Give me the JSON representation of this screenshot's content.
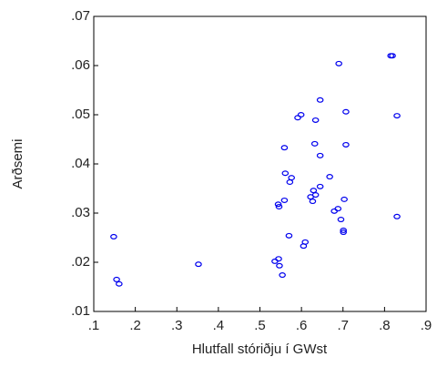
{
  "chart_data": {
    "type": "scatter",
    "x_label": "Hlutfall stóriðju í GWst",
    "y_label": "Arðsemi",
    "color": "#0000ee",
    "xlim": [
      0.1,
      0.9
    ],
    "ylim": [
      0.01,
      0.07
    ],
    "xticks": [
      {
        "value": 0.1,
        "label": ".1"
      },
      {
        "value": 0.2,
        "label": ".2"
      },
      {
        "value": 0.3,
        "label": ".3"
      },
      {
        "value": 0.4,
        "label": ".4"
      },
      {
        "value": 0.5,
        "label": ".5"
      },
      {
        "value": 0.6,
        "label": ".6"
      },
      {
        "value": 0.7,
        "label": ".7"
      },
      {
        "value": 0.8,
        "label": ".8"
      },
      {
        "value": 0.9,
        "label": ".9"
      }
    ],
    "yticks": [
      {
        "value": 0.01,
        "label": ".01"
      },
      {
        "value": 0.02,
        "label": ".02"
      },
      {
        "value": 0.03,
        "label": ".03"
      },
      {
        "value": 0.04,
        "label": ".04"
      },
      {
        "value": 0.05,
        "label": ".05"
      },
      {
        "value": 0.06,
        "label": ".06"
      },
      {
        "value": 0.07,
        "label": ".07"
      }
    ],
    "x": [
      0.148,
      0.155,
      0.161,
      0.352,
      0.536,
      0.545,
      0.547,
      0.554,
      0.544,
      0.546,
      0.559,
      0.559,
      0.561,
      0.57,
      0.572,
      0.576,
      0.591,
      0.599,
      0.605,
      0.609,
      0.622,
      0.629,
      0.627,
      0.634,
      0.632,
      0.634,
      0.645,
      0.645,
      0.645,
      0.668,
      0.679,
      0.688,
      0.695,
      0.703,
      0.701,
      0.701,
      0.707,
      0.707,
      0.69,
      0.815,
      0.819,
      0.83,
      0.83
    ],
    "values": [
      0.0252,
      0.0165,
      0.0156,
      0.0196,
      0.0202,
      0.0207,
      0.0193,
      0.0174,
      0.0318,
      0.0313,
      0.0326,
      0.0433,
      0.0381,
      0.0254,
      0.0363,
      0.0372,
      0.0494,
      0.05,
      0.0233,
      0.0241,
      0.0333,
      0.0346,
      0.0324,
      0.0337,
      0.0441,
      0.0489,
      0.0417,
      0.0354,
      0.053,
      0.0374,
      0.0304,
      0.0309,
      0.0287,
      0.0328,
      0.0265,
      0.0261,
      0.0439,
      0.0506,
      0.0604,
      0.062,
      0.062,
      0.0498,
      0.0293
    ]
  }
}
